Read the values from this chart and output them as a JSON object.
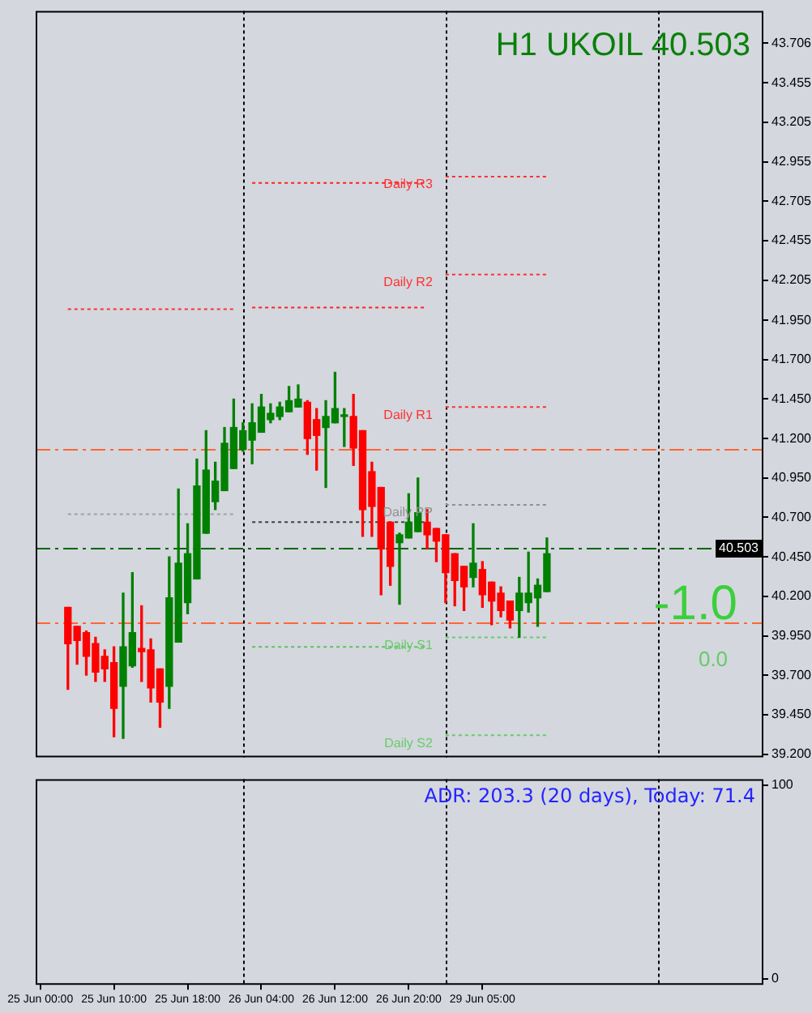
{
  "chart_data": [
    {
      "type": "candlestick",
      "title": "H1 UKOIL 40.503",
      "grid": "x",
      "categories": [
        null,
        null,
        null,
        null,
        null,
        null,
        null,
        null,
        null,
        null,
        null,
        null,
        null,
        null,
        null,
        null,
        null,
        null,
        null,
        null,
        null,
        null,
        null,
        null,
        null,
        null,
        null,
        null,
        null,
        null,
        null,
        null,
        null,
        null,
        null,
        null,
        null,
        null,
        null,
        null,
        null,
        null,
        null,
        null,
        null,
        null,
        null,
        null,
        null,
        null,
        null,
        null,
        null,
        null,
        null,
        null,
        null,
        null,
        null,
        null,
        null,
        null,
        null,
        null,
        null,
        null,
        null,
        null,
        null,
        null,
        null,
        null,
        null,
        null,
        null,
        null,
        null,
        null,
        null
      ],
      "ohlc": [
        null,
        null,
        null,
        [
          40.13,
          40.13,
          39.61,
          39.9
        ],
        [
          40.01,
          40.01,
          39.77,
          39.92
        ],
        [
          39.97,
          39.98,
          39.7,
          39.82
        ],
        [
          39.9,
          39.94,
          39.66,
          39.72
        ],
        [
          39.82,
          39.86,
          39.66,
          39.74
        ],
        [
          39.78,
          39.88,
          39.31,
          39.49
        ],
        [
          39.63,
          40.22,
          39.3,
          39.88
        ],
        [
          39.76,
          40.35,
          39.75,
          39.97
        ],
        [
          39.87,
          40.14,
          39.66,
          39.85
        ],
        [
          39.86,
          39.93,
          39.53,
          39.62
        ],
        [
          39.74,
          39.74,
          39.37,
          39.53
        ],
        [
          39.63,
          40.45,
          39.49,
          40.19
        ],
        [
          39.91,
          40.88,
          39.91,
          40.41
        ],
        [
          40.16,
          40.66,
          40.09,
          40.47
        ],
        [
          40.31,
          41.07,
          40.31,
          40.9
        ],
        [
          40.6,
          41.25,
          40.6,
          41.0
        ],
        [
          40.8,
          41.05,
          40.75,
          40.93
        ],
        [
          40.87,
          41.27,
          40.87,
          41.17
        ],
        [
          41.01,
          41.45,
          41.01,
          41.27
        ],
        [
          41.13,
          41.3,
          41.12,
          41.25
        ],
        [
          41.19,
          41.42,
          41.04,
          41.3
        ],
        [
          41.24,
          41.48,
          41.24,
          41.4
        ],
        [
          41.32,
          41.42,
          41.3,
          41.36
        ],
        [
          41.34,
          41.43,
          41.32,
          41.4
        ],
        [
          41.37,
          41.53,
          41.37,
          41.44
        ],
        [
          41.4,
          41.54,
          41.4,
          41.45
        ],
        [
          41.43,
          41.44,
          41.1,
          41.2
        ],
        [
          41.32,
          41.39,
          41.0,
          41.22
        ],
        [
          41.27,
          41.44,
          40.89,
          41.34
        ],
        [
          41.3,
          41.62,
          41.3,
          41.39
        ],
        [
          41.34,
          41.39,
          41.15,
          41.35
        ],
        [
          41.34,
          41.48,
          41.03,
          41.14
        ],
        [
          41.25,
          41.25,
          40.58,
          40.75
        ],
        [
          40.99,
          41.05,
          40.58,
          40.77
        ],
        [
          40.89,
          40.89,
          40.21,
          40.5
        ],
        [
          40.67,
          40.67,
          40.27,
          40.39
        ],
        [
          40.54,
          40.6,
          40.15,
          40.59
        ],
        [
          40.57,
          40.85,
          40.57,
          40.67
        ],
        [
          40.61,
          40.95,
          40.61,
          40.73
        ],
        [
          40.67,
          40.75,
          40.5,
          40.59
        ],
        [
          40.63,
          40.63,
          40.42,
          40.55
        ],
        [
          40.59,
          40.59,
          40.16,
          40.35
        ],
        [
          40.47,
          40.47,
          40.14,
          40.3
        ],
        [
          40.39,
          40.39,
          40.11,
          40.26
        ],
        [
          40.32,
          40.66,
          40.26,
          40.41
        ],
        [
          40.37,
          40.42,
          40.13,
          40.21
        ],
        [
          40.29,
          40.29,
          40.02,
          40.17
        ],
        [
          40.22,
          40.26,
          40.07,
          40.11
        ],
        [
          40.17,
          40.17,
          40.0,
          40.05
        ],
        [
          40.11,
          40.32,
          39.94,
          40.22
        ],
        [
          40.16,
          40.48,
          40.1,
          40.22
        ],
        [
          40.19,
          40.31,
          40.01,
          40.27
        ],
        [
          40.23,
          40.57,
          40.23,
          40.47
        ],
        null,
        null,
        null,
        null,
        null,
        null,
        null,
        null,
        null,
        null,
        null,
        null,
        null,
        null,
        null,
        null,
        null,
        null,
        null,
        null,
        null,
        null,
        null
      ],
      "colors": [
        null,
        null,
        null,
        "#ff0000",
        "#ff0000",
        "#ff0000",
        "#ff0000",
        "#ff0000",
        "#ff0000",
        "#008000",
        "#008000",
        "#ff0000",
        "#ff0000",
        "#ff0000",
        "#008000",
        "#008000",
        "#008000",
        "#008000",
        "#008000",
        "#008000",
        "#008000",
        "#008000",
        "#008000",
        "#008000",
        "#008000",
        "#008000",
        "#008000",
        "#008000",
        "#008000",
        "#ff0000",
        "#ff0000",
        "#008000",
        "#008000",
        "#008000",
        "#ff0000",
        "#ff0000",
        "#ff0000",
        "#ff0000",
        "#ff0000",
        "#008000",
        "#008000",
        "#008000",
        "#ff0000",
        "#ff0000",
        "#ff0000",
        "#ff0000",
        "#ff0000",
        "#008000",
        "#ff0000",
        "#ff0000",
        "#ff0000",
        "#ff0000",
        "#008000",
        "#008000",
        "#008000",
        "#008000",
        null,
        null,
        null,
        null,
        null,
        null,
        null,
        null,
        null,
        null,
        null,
        null,
        null,
        null,
        null,
        null,
        null,
        null,
        null,
        null,
        null,
        null,
        null
      ],
      "series": [
        {
          "type": "line",
          "color": "#ff3030",
          "line_style": "dotted",
          "values": [
            null,
            null,
            null,
            42.02,
            42.02,
            42.02,
            42.02,
            42.02,
            42.02,
            42.02,
            42.02,
            42.02,
            42.02,
            42.02,
            42.02,
            42.02,
            42.02,
            42.02,
            42.02,
            42.02,
            42.02,
            42.02,
            null,
            null,
            null,
            null,
            null,
            null,
            null,
            null,
            null,
            null,
            null,
            null,
            null,
            null,
            null,
            null,
            null,
            null,
            null,
            null,
            null,
            null,
            null,
            null,
            null,
            null,
            null,
            null,
            null,
            null,
            null,
            null,
            null,
            null,
            null,
            null,
            null,
            null,
            null,
            null,
            null,
            null,
            null,
            null,
            null,
            null,
            null,
            null,
            null,
            null,
            null,
            null,
            null,
            null,
            null,
            null,
            null
          ]
        },
        {
          "type": "line",
          "color": "#a0a0a0",
          "line_style": "dotted",
          "values": [
            null,
            null,
            null,
            40.72,
            40.72,
            40.72,
            40.72,
            40.72,
            40.72,
            40.72,
            40.72,
            40.72,
            40.72,
            40.72,
            40.72,
            40.72,
            40.72,
            40.72,
            40.72,
            40.72,
            40.72,
            40.72,
            null,
            null,
            null,
            null,
            null,
            null,
            null,
            null,
            null,
            null,
            null,
            null,
            null,
            null,
            null,
            null,
            null,
            null,
            null,
            null,
            null,
            null,
            null,
            null,
            null,
            null,
            null,
            null,
            null,
            null,
            null,
            null,
            null,
            null,
            null,
            null,
            null,
            null,
            null,
            null,
            null,
            null,
            null,
            null,
            null,
            null,
            null,
            null,
            null,
            null,
            null,
            null,
            null,
            null,
            null,
            null,
            null
          ]
        },
        {
          "type": "line",
          "color": "#ff2020",
          "line_style": "dotted",
          "values": [
            null,
            null,
            null,
            null,
            null,
            null,
            null,
            null,
            null,
            null,
            null,
            null,
            null,
            null,
            null,
            null,
            null,
            null,
            null,
            null,
            null,
            null,
            null,
            42.82,
            42.82,
            42.82,
            42.82,
            42.82,
            42.82,
            42.82,
            42.82,
            42.82,
            42.82,
            42.82,
            42.82,
            42.82,
            42.82,
            42.82,
            42.82,
            42.82,
            42.82,
            42.82,
            42.82,
            null,
            null,
            null,
            null,
            null,
            null,
            null,
            null,
            null,
            null,
            null,
            null,
            null,
            null,
            null,
            null,
            null,
            null,
            null,
            null,
            null,
            null,
            null,
            null,
            null,
            null,
            null,
            null,
            null,
            null,
            null,
            null,
            null,
            null,
            null,
            null
          ]
        },
        {
          "type": "line",
          "color": "#ff2020",
          "line_style": "dotted",
          "values": [
            null,
            null,
            null,
            null,
            null,
            null,
            null,
            null,
            null,
            null,
            null,
            null,
            null,
            null,
            null,
            null,
            null,
            null,
            null,
            null,
            null,
            null,
            null,
            42.03,
            42.03,
            42.03,
            42.03,
            42.03,
            42.03,
            42.03,
            42.03,
            42.03,
            42.03,
            42.03,
            42.03,
            42.03,
            42.03,
            42.03,
            42.03,
            42.03,
            42.03,
            42.03,
            42.03,
            null,
            null,
            null,
            null,
            null,
            null,
            null,
            null,
            null,
            null,
            null,
            null,
            null,
            null,
            null,
            null,
            null,
            null,
            null,
            null,
            null,
            null,
            null,
            null,
            null,
            null,
            null,
            null,
            null,
            null,
            null,
            null,
            null,
            null,
            null,
            null
          ]
        },
        {
          "type": "line",
          "color": "#404040",
          "line_style": "dotted",
          "values": [
            null,
            null,
            null,
            null,
            null,
            null,
            null,
            null,
            null,
            null,
            null,
            null,
            null,
            null,
            null,
            null,
            null,
            null,
            null,
            null,
            null,
            null,
            null,
            40.67,
            40.67,
            40.67,
            40.67,
            40.67,
            40.67,
            40.67,
            40.67,
            40.67,
            40.67,
            40.67,
            40.67,
            40.67,
            40.67,
            40.67,
            40.67,
            40.67,
            40.67,
            40.67,
            40.67,
            null,
            null,
            null,
            null,
            null,
            null,
            null,
            null,
            null,
            null,
            null,
            null,
            null,
            null,
            null,
            null,
            null,
            null,
            null,
            null,
            null,
            null,
            null,
            null,
            null,
            null,
            null,
            null,
            null,
            null,
            null,
            null,
            null,
            null,
            null,
            null
          ]
        },
        {
          "type": "line",
          "color": "#60c060",
          "line_style": "dotted",
          "values": [
            null,
            null,
            null,
            null,
            null,
            null,
            null,
            null,
            null,
            null,
            null,
            null,
            null,
            null,
            null,
            null,
            null,
            null,
            null,
            null,
            null,
            null,
            null,
            39.88,
            39.88,
            39.88,
            39.88,
            39.88,
            39.88,
            39.88,
            39.88,
            39.88,
            39.88,
            39.88,
            39.88,
            39.88,
            39.88,
            39.88,
            39.88,
            39.88,
            39.88,
            39.88,
            39.88,
            null,
            null,
            null,
            null,
            null,
            null,
            null,
            null,
            null,
            null,
            null,
            null,
            null,
            null,
            null,
            null,
            null,
            null,
            null,
            null,
            null,
            null,
            null,
            null,
            null,
            null,
            null,
            null,
            null,
            null,
            null,
            null,
            null,
            null,
            null,
            null
          ]
        },
        {
          "type": "line",
          "name": "Daily R3",
          "color": "#ff3030",
          "line_style": "dotted",
          "values": [
            null,
            null,
            null,
            null,
            null,
            null,
            null,
            null,
            null,
            null,
            null,
            null,
            null,
            null,
            null,
            null,
            null,
            null,
            null,
            null,
            null,
            null,
            null,
            null,
            null,
            null,
            null,
            null,
            null,
            null,
            null,
            null,
            null,
            null,
            null,
            null,
            null,
            null,
            null,
            null,
            null,
            null,
            null,
            null,
            42.86,
            42.86,
            42.86,
            42.86,
            42.86,
            42.86,
            42.86,
            42.86,
            42.86,
            42.86,
            42.86,
            42.86,
            null,
            null,
            null,
            null,
            null,
            null,
            null,
            null,
            null,
            null,
            null,
            null,
            null,
            null,
            null,
            null,
            null,
            null,
            null,
            null,
            null,
            null,
            null
          ]
        },
        {
          "type": "line",
          "name": "Daily R2",
          "color": "#ff3030",
          "line_style": "dotted",
          "values": [
            null,
            null,
            null,
            null,
            null,
            null,
            null,
            null,
            null,
            null,
            null,
            null,
            null,
            null,
            null,
            null,
            null,
            null,
            null,
            null,
            null,
            null,
            null,
            null,
            null,
            null,
            null,
            null,
            null,
            null,
            null,
            null,
            null,
            null,
            null,
            null,
            null,
            null,
            null,
            null,
            null,
            null,
            null,
            null,
            42.24,
            42.24,
            42.24,
            42.24,
            42.24,
            42.24,
            42.24,
            42.24,
            42.24,
            42.24,
            42.24,
            42.24,
            null,
            null,
            null,
            null,
            null,
            null,
            null,
            null,
            null,
            null,
            null,
            null,
            null,
            null,
            null,
            null,
            null,
            null,
            null,
            null,
            null,
            null,
            null
          ]
        },
        {
          "type": "line",
          "name": "Daily R1",
          "color": "#ff3030",
          "line_style": "dotted",
          "values": [
            null,
            null,
            null,
            null,
            null,
            null,
            null,
            null,
            null,
            null,
            null,
            null,
            null,
            null,
            null,
            null,
            null,
            null,
            null,
            null,
            null,
            null,
            null,
            null,
            null,
            null,
            null,
            null,
            null,
            null,
            null,
            null,
            null,
            null,
            null,
            null,
            null,
            null,
            null,
            null,
            null,
            null,
            null,
            null,
            41.4,
            41.4,
            41.4,
            41.4,
            41.4,
            41.4,
            41.4,
            41.4,
            41.4,
            41.4,
            41.4,
            41.4,
            null,
            null,
            null,
            null,
            null,
            null,
            null,
            null,
            null,
            null,
            null,
            null,
            null,
            null,
            null,
            null,
            null,
            null,
            null,
            null,
            null,
            null,
            null
          ]
        },
        {
          "type": "line",
          "name": "Daily PP",
          "color": "#909090",
          "line_style": "dotted",
          "values": [
            null,
            null,
            null,
            null,
            null,
            null,
            null,
            null,
            null,
            null,
            null,
            null,
            null,
            null,
            null,
            null,
            null,
            null,
            null,
            null,
            null,
            null,
            null,
            null,
            null,
            null,
            null,
            null,
            null,
            null,
            null,
            null,
            null,
            null,
            null,
            null,
            null,
            null,
            null,
            null,
            null,
            null,
            null,
            null,
            40.78,
            40.78,
            40.78,
            40.78,
            40.78,
            40.78,
            40.78,
            40.78,
            40.78,
            40.78,
            40.78,
            40.78,
            null,
            null,
            null,
            null,
            null,
            null,
            null,
            null,
            null,
            null,
            null,
            null,
            null,
            null,
            null,
            null,
            null,
            null,
            null,
            null,
            null,
            null,
            null
          ]
        },
        {
          "type": "line",
          "name": "Daily S1",
          "color": "#66cc66",
          "line_style": "dotted",
          "values": [
            null,
            null,
            null,
            null,
            null,
            null,
            null,
            null,
            null,
            null,
            null,
            null,
            null,
            null,
            null,
            null,
            null,
            null,
            null,
            null,
            null,
            null,
            null,
            null,
            null,
            null,
            null,
            null,
            null,
            null,
            null,
            null,
            null,
            null,
            null,
            null,
            null,
            null,
            null,
            null,
            null,
            null,
            null,
            null,
            39.94,
            39.94,
            39.94,
            39.94,
            39.94,
            39.94,
            39.94,
            39.94,
            39.94,
            39.94,
            39.94,
            39.94,
            null,
            null,
            null,
            null,
            null,
            null,
            null,
            null,
            null,
            null,
            null,
            null,
            null,
            null,
            null,
            null,
            null,
            null,
            null,
            null,
            null,
            null,
            null
          ]
        },
        {
          "type": "line",
          "name": "Daily S2",
          "color": "#66cc66",
          "line_style": "dotted",
          "values": [
            null,
            null,
            null,
            null,
            null,
            null,
            null,
            null,
            null,
            null,
            null,
            null,
            null,
            null,
            null,
            null,
            null,
            null,
            null,
            null,
            null,
            null,
            null,
            null,
            null,
            null,
            null,
            null,
            null,
            null,
            null,
            null,
            null,
            null,
            null,
            null,
            null,
            null,
            null,
            null,
            null,
            null,
            null,
            null,
            39.32,
            39.32,
            39.32,
            39.32,
            39.32,
            39.32,
            39.32,
            39.32,
            39.32,
            39.32,
            39.32,
            39.32,
            null,
            null,
            null,
            null,
            null,
            null,
            null,
            null,
            null,
            null,
            null,
            null,
            null,
            null,
            null,
            null,
            null,
            null,
            null,
            null,
            null,
            null,
            null
          ]
        }
      ],
      "ref_lines": [
        {
          "axis": "y",
          "value": 41.13,
          "color": "#ff6633",
          "line_style": "dashed"
        },
        {
          "axis": "y",
          "value": 40.503,
          "label": "40.503",
          "color": "#006400",
          "line_style": "dashed"
        },
        {
          "axis": "y",
          "value": 40.03,
          "color": "#ff6633",
          "line_style": "dashed"
        }
      ],
      "annotations": [
        "-1.0",
        "0.0"
      ],
      "ylim": [
        39.18,
        43.91
      ],
      "yticks": [
        43.706,
        43.455,
        43.205,
        42.955,
        42.705,
        42.455,
        42.205,
        {
          "value": 41.95,
          "label": "41.950"
        },
        {
          "value": 41.7,
          "label": "41.700"
        },
        {
          "value": 41.45,
          "label": "41.450"
        },
        {
          "value": 41.2,
          "label": "41.200"
        },
        {
          "value": 40.95,
          "label": "40.950"
        },
        {
          "value": 40.7,
          "label": "40.700"
        },
        {
          "value": 40.45,
          "label": "40.450"
        },
        {
          "value": 40.2,
          "label": "40.200"
        },
        {
          "value": 39.95,
          "label": "39.950"
        },
        {
          "value": 39.7,
          "label": "39.700"
        },
        {
          "value": 39.45,
          "label": "39.450"
        },
        {
          "value": 39.2,
          "label": "39.200"
        }
      ]
    },
    {
      "type": "line",
      "annotations": [
        "ADR: 203.3 (20 days), Today: 71.4"
      ],
      "categories": [
        "25 Jun 00:00",
        null,
        null,
        null,
        null,
        null,
        null,
        null,
        "25 Jun 10:00",
        null,
        null,
        null,
        null,
        null,
        null,
        null,
        "25 Jun 18:00",
        null,
        null,
        null,
        null,
        null,
        null,
        null,
        "26 Jun 04:00",
        null,
        null,
        null,
        null,
        null,
        null,
        null,
        "26 Jun 12:00",
        null,
        null,
        null,
        null,
        null,
        null,
        null,
        "26 Jun 20:00",
        null,
        null,
        null,
        null,
        null,
        null,
        null,
        "29 Jun 05:00",
        null,
        null,
        null,
        null,
        null,
        null,
        null,
        null,
        null,
        null,
        null,
        null,
        null,
        null,
        null,
        null,
        null,
        null,
        null,
        null,
        null,
        null,
        null,
        null,
        null,
        null,
        null,
        null,
        null,
        null
      ],
      "values": [
        null,
        null,
        null,
        null,
        null,
        null,
        null,
        null,
        null,
        null,
        null,
        null,
        null,
        null,
        null,
        null,
        null,
        null,
        null,
        null,
        null,
        null,
        null,
        null,
        null,
        null,
        null,
        null,
        null,
        null,
        null,
        null,
        null,
        null,
        null,
        null,
        null,
        null,
        null,
        null,
        null,
        null,
        null,
        null,
        null,
        null,
        null,
        null,
        null,
        null,
        null,
        null,
        null,
        null,
        null,
        null,
        null,
        null,
        null,
        null,
        null,
        null,
        null,
        null,
        null,
        null,
        null,
        null,
        null,
        null,
        null,
        null,
        null,
        null,
        null,
        null,
        null,
        null,
        null
      ],
      "ylim": [
        -3,
        103
      ],
      "yticks": [
        0,
        100
      ]
    }
  ]
}
